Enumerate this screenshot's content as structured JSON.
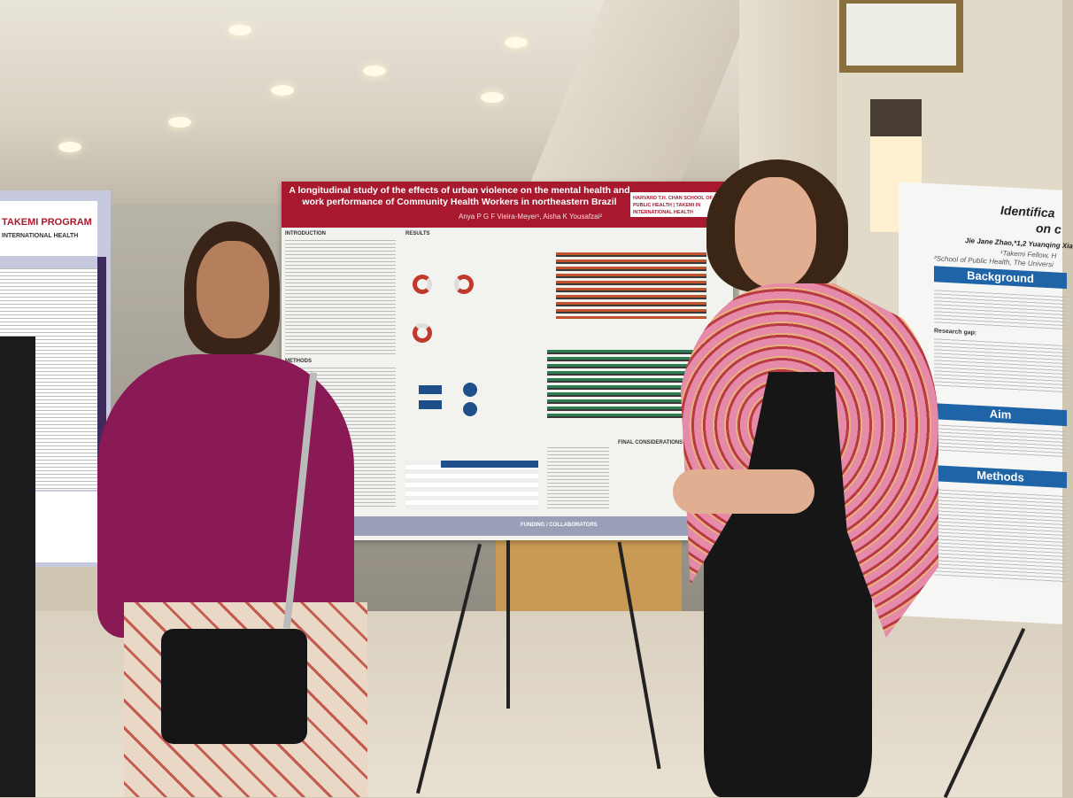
{
  "scene": {
    "description_colors": {
      "poster_red": "#a8192e",
      "background_blue": "#1e64a7",
      "magenta_cardigan": "#8a1a55",
      "pink_scarf": "#e58aa8"
    }
  },
  "center_poster": {
    "title": "A longitudinal study of the effects of urban violence on the mental health and work performance of Community Health Workers in northeastern Brazil",
    "authors": "Anya P G F Vieira-Meyer¹, Aisha K Yousafzai²",
    "logo": "HARVARD T.H. CHAN SCHOOL OF PUBLIC HEALTH | TAKEMI IN INTERNATIONAL HEALTH",
    "sections": {
      "introduction": "INTRODUCTION",
      "results": "RESULTS",
      "methods": "METHODS",
      "final": "FINAL CONSIDERATIONS",
      "funding": "FUNDING / COLLABORATORS"
    }
  },
  "left_poster": {
    "header_line1": "TAKEMI PROGRAM",
    "header_line2": "INTERNATIONAL HEALTH"
  },
  "right_poster": {
    "title": "Identifica",
    "title2": "on c",
    "authors": "Jie Jane Zhao,*1,2 Yuanqing Xia",
    "affil1": "¹Takemi Fellow, H",
    "affil2": "²School of Public Health, The Universi",
    "sections": {
      "background": "Background",
      "aim": "Aim",
      "methods": "Methods"
    },
    "research_gap": "Research gap:"
  }
}
